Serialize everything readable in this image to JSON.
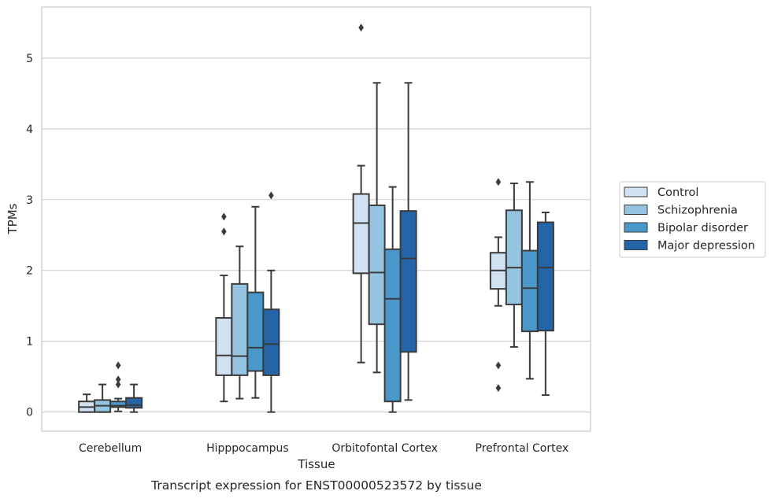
{
  "chart_data": {
    "type": "box",
    "caption": "Transcript expression for ENST00000523572 by tissue",
    "xlabel": "Tissue",
    "ylabel": "TPMs",
    "ylim": [
      -0.27,
      5.72
    ],
    "yticks": [
      0,
      1,
      2,
      3,
      4,
      5
    ],
    "grid": "horizontal",
    "legend_position": "right",
    "categories": [
      "Cerebellum",
      "Hipppocampus",
      "Orbitofontal Cortex",
      "Prefrontal Cortex"
    ],
    "series": [
      {
        "name": "Control",
        "color": "#d0e1f2",
        "boxes": [
          {
            "whisker_low": 0.0,
            "q1": 0.0,
            "median": 0.07,
            "q3": 0.15,
            "whisker_high": 0.25,
            "outliers": []
          },
          {
            "whisker_low": 0.15,
            "q1": 0.52,
            "median": 0.8,
            "q3": 1.33,
            "whisker_high": 1.93,
            "outliers": [
              2.55,
              2.76
            ]
          },
          {
            "whisker_low": 0.7,
            "q1": 1.96,
            "median": 2.67,
            "q3": 3.08,
            "whisker_high": 3.48,
            "outliers": [
              5.43
            ]
          },
          {
            "whisker_low": 1.5,
            "q1": 1.74,
            "median": 2.0,
            "q3": 2.25,
            "whisker_high": 2.47,
            "outliers": [
              0.34,
              0.66,
              3.25
            ]
          }
        ]
      },
      {
        "name": "Schizophrenia",
        "color": "#94c4df",
        "boxes": [
          {
            "whisker_low": 0.0,
            "q1": 0.0,
            "median": 0.09,
            "q3": 0.17,
            "whisker_high": 0.39,
            "outliers": []
          },
          {
            "whisker_low": 0.19,
            "q1": 0.52,
            "median": 0.79,
            "q3": 1.81,
            "whisker_high": 2.34,
            "outliers": []
          },
          {
            "whisker_low": 0.56,
            "q1": 1.24,
            "median": 1.97,
            "q3": 2.92,
            "whisker_high": 4.65,
            "outliers": []
          },
          {
            "whisker_low": 0.92,
            "q1": 1.52,
            "median": 2.04,
            "q3": 2.85,
            "whisker_high": 3.23,
            "outliers": []
          }
        ]
      },
      {
        "name": "Bipolar disorder",
        "color": "#4a98c9",
        "boxes": [
          {
            "whisker_low": 0.01,
            "q1": 0.07,
            "median": 0.09,
            "q3": 0.15,
            "whisker_high": 0.19,
            "outliers": [
              0.39,
              0.46,
              0.66
            ]
          },
          {
            "whisker_low": 0.2,
            "q1": 0.58,
            "median": 0.91,
            "q3": 1.69,
            "whisker_high": 2.9,
            "outliers": []
          },
          {
            "whisker_low": 0.0,
            "q1": 0.15,
            "median": 1.6,
            "q3": 2.3,
            "whisker_high": 3.18,
            "outliers": []
          },
          {
            "whisker_low": 0.47,
            "q1": 1.14,
            "median": 1.75,
            "q3": 2.28,
            "whisker_high": 3.25,
            "outliers": []
          }
        ]
      },
      {
        "name": "Major depression",
        "color": "#2365a8",
        "boxes": [
          {
            "whisker_low": 0.0,
            "q1": 0.06,
            "median": 0.1,
            "q3": 0.2,
            "whisker_high": 0.39,
            "outliers": []
          },
          {
            "whisker_low": 0.0,
            "q1": 0.52,
            "median": 0.96,
            "q3": 1.45,
            "whisker_high": 2.0,
            "outliers": [
              3.06
            ]
          },
          {
            "whisker_low": 0.17,
            "q1": 0.85,
            "median": 2.17,
            "q3": 2.84,
            "whisker_high": 4.65,
            "outliers": []
          },
          {
            "whisker_low": 0.24,
            "q1": 1.15,
            "median": 2.04,
            "q3": 2.68,
            "whisker_high": 2.82,
            "outliers": []
          }
        ]
      }
    ]
  }
}
